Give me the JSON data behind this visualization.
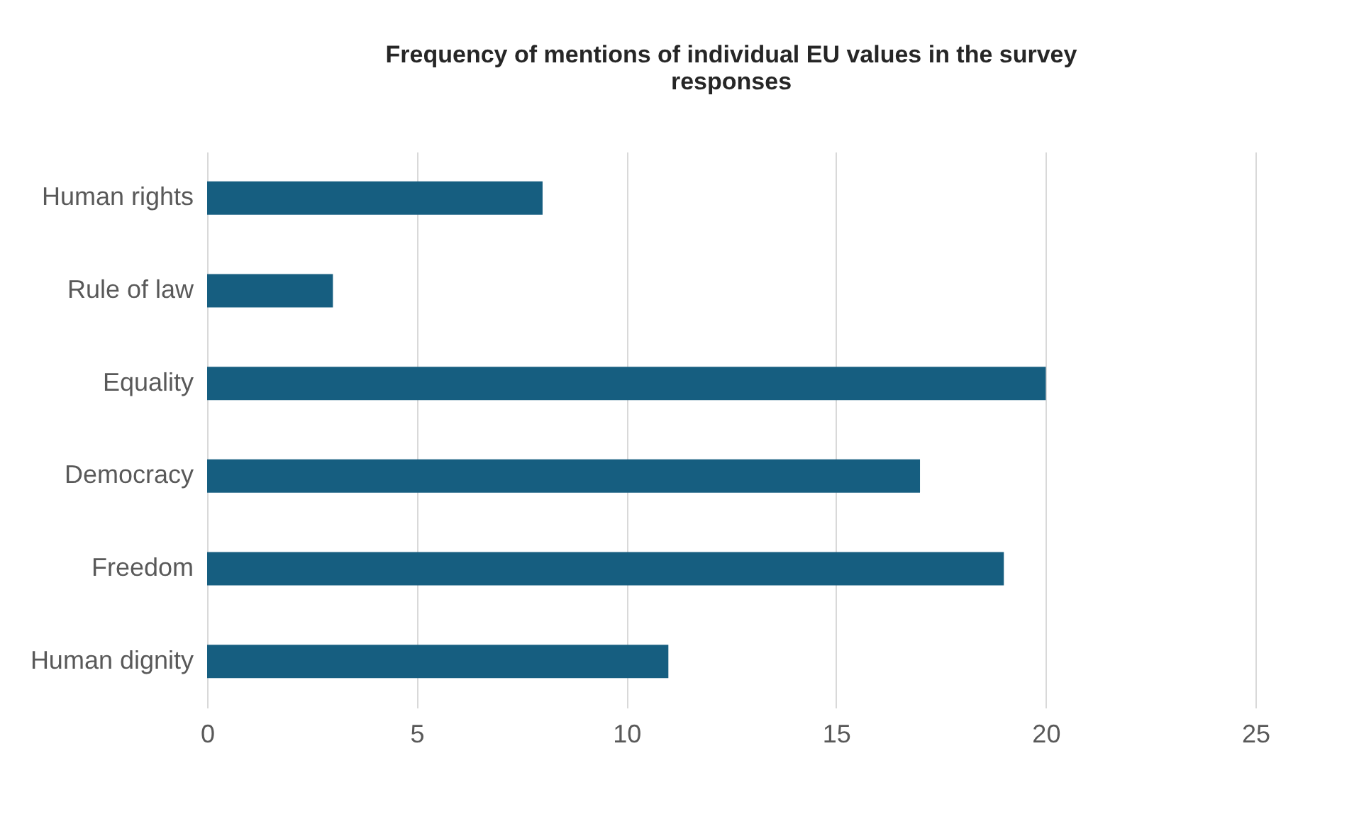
{
  "chart_data": {
    "type": "bar",
    "orientation": "horizontal",
    "title": "Frequency of mentions of individual EU values in the survey responses",
    "categories": [
      "Human rights",
      "Rule of law",
      "Equality",
      "Democracy",
      "Freedom",
      "Human dignity"
    ],
    "values": [
      8,
      3,
      20,
      17,
      19,
      11
    ],
    "color": "#165e80",
    "xlim": [
      0,
      25
    ],
    "xticks": [
      0,
      5,
      10,
      15,
      20,
      25
    ],
    "grid": "x"
  }
}
